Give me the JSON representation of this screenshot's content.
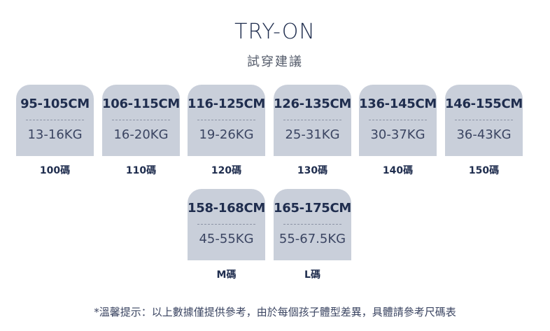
{
  "header": {
    "title": "TRY-ON",
    "subtitle": "試穿建議"
  },
  "sizes": [
    {
      "height": "95-105CM",
      "weight": "13-16KG",
      "label": "100碼"
    },
    {
      "height": "106-115CM",
      "weight": "16-20KG",
      "label": "110碼"
    },
    {
      "height": "116-125CM",
      "weight": "19-26KG",
      "label": "120碼"
    },
    {
      "height": "126-135CM",
      "weight": "25-31KG",
      "label": "130碼"
    },
    {
      "height": "136-145CM",
      "weight": "30-37KG",
      "label": "140碼"
    },
    {
      "height": "146-155CM",
      "weight": "36-43KG",
      "label": "150碼"
    },
    {
      "height": "158-168CM",
      "weight": "45-55KG",
      "label": "M碼"
    },
    {
      "height": "165-175CM",
      "weight": "55-67.5KG",
      "label": "L碼"
    }
  ],
  "note": "*溫馨提示：以上數據僅提供參考，由於每個孩子體型差異，具體請參考尺碼表",
  "colors": {
    "card": "#c9cfda",
    "text": "#1f2d4e"
  }
}
